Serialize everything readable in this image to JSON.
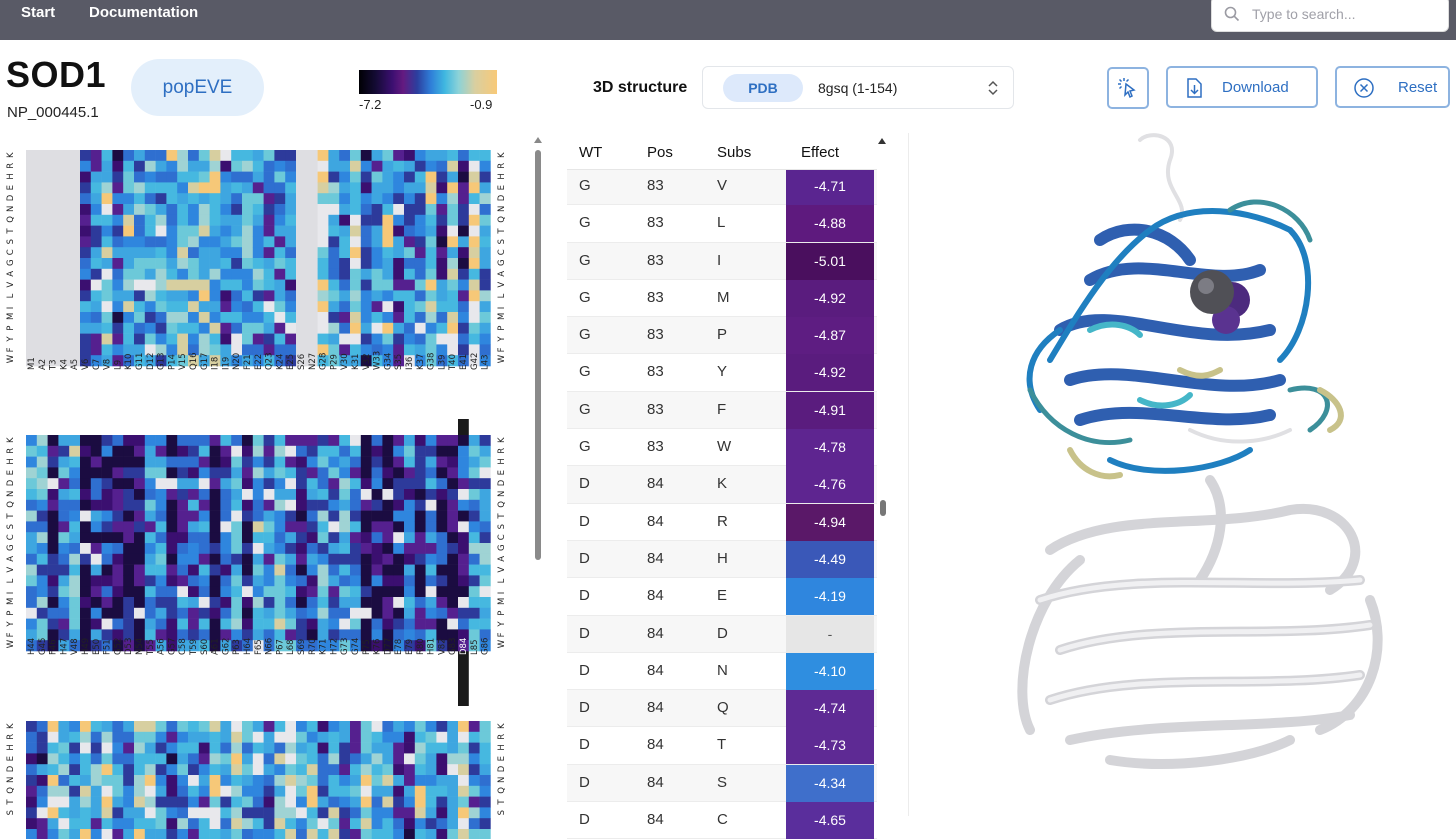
{
  "nav": {
    "start": "Start",
    "documentation": "Documentation",
    "search_placeholder": "Type to search..."
  },
  "header": {
    "gene": "SOD1",
    "protein_id": "NP_000445.1",
    "model": "popEVE",
    "colorbar_min": "-7.2",
    "colorbar_max": "-0.9",
    "structure_label": "3D structure",
    "structure_source": "PDB",
    "structure_value": "8gsq (1-154)",
    "download_label": "Download",
    "reset_label": "Reset"
  },
  "heatmap": {
    "amino_acids": [
      "K",
      "R",
      "H",
      "E",
      "D",
      "N",
      "Q",
      "T",
      "S",
      "C",
      "G",
      "A",
      "V",
      "L",
      "I",
      "M",
      "P",
      "Y",
      "F",
      "W"
    ],
    "blocks": [
      {
        "positions": [
          "M1",
          "A2",
          "T3",
          "K4",
          "A5",
          "V6",
          "C7",
          "V8",
          "L9",
          "K10",
          "G11",
          "D12",
          "G13",
          "P14",
          "V15",
          "Q16",
          "G17",
          "I18",
          "I19",
          "N20",
          "F21",
          "E22",
          "Q23",
          "K24",
          "E25",
          "S26",
          "N27",
          "G28",
          "P29",
          "V30",
          "K31",
          "V32",
          "W33",
          "G34",
          "S35",
          "I36",
          "K37",
          "G38",
          "L39",
          "T40",
          "E41",
          "G42",
          "L43"
        ]
      },
      {
        "positions": [
          "H44",
          "G45",
          "F46",
          "H47",
          "V48",
          "H49",
          "E50",
          "F51",
          "G52",
          "D53",
          "N54",
          "T55",
          "A56",
          "G57",
          "C58",
          "T59",
          "S60",
          "A61",
          "G62",
          "P63",
          "H64",
          "F65",
          "N66",
          "P67",
          "L68",
          "S69",
          "R70",
          "K71",
          "H72",
          "G73",
          "G74",
          "P75",
          "K76",
          "D77",
          "E78",
          "E79",
          "R80",
          "H81",
          "V82",
          "G83",
          "D84",
          "L85",
          "G86"
        ],
        "highlighted": "D84"
      },
      {
        "positions": []
      }
    ]
  },
  "table": {
    "headers": {
      "wt": "WT",
      "pos": "Pos",
      "subs": "Subs",
      "effect": "Effect"
    },
    "rows": [
      {
        "wt": "G",
        "pos": "83",
        "subs": "V",
        "effect": "-4.71",
        "color": "#5a2590"
      },
      {
        "wt": "G",
        "pos": "83",
        "subs": "L",
        "effect": "-4.88",
        "color": "#5e1a7e"
      },
      {
        "wt": "G",
        "pos": "83",
        "subs": "I",
        "effect": "-5.01",
        "color": "#4a0f5e"
      },
      {
        "wt": "G",
        "pos": "83",
        "subs": "M",
        "effect": "-4.92",
        "color": "#5a1c7e"
      },
      {
        "wt": "G",
        "pos": "83",
        "subs": "P",
        "effect": "-4.87",
        "color": "#5e1d82"
      },
      {
        "wt": "G",
        "pos": "83",
        "subs": "Y",
        "effect": "-4.92",
        "color": "#5a1c7e"
      },
      {
        "wt": "G",
        "pos": "83",
        "subs": "F",
        "effect": "-4.91",
        "color": "#5a1c7e"
      },
      {
        "wt": "G",
        "pos": "83",
        "subs": "W",
        "effect": "-4.78",
        "color": "#5e2590"
      },
      {
        "wt": "D",
        "pos": "84",
        "subs": "K",
        "effect": "-4.76",
        "color": "#5e2590"
      },
      {
        "wt": "D",
        "pos": "84",
        "subs": "R",
        "effect": "-4.94",
        "color": "#5a1868"
      },
      {
        "wt": "D",
        "pos": "84",
        "subs": "H",
        "effect": "-4.49",
        "color": "#3a58b8"
      },
      {
        "wt": "D",
        "pos": "84",
        "subs": "E",
        "effect": "-4.19",
        "color": "#2f86de"
      },
      {
        "wt": "D",
        "pos": "84",
        "subs": "D",
        "effect": "-",
        "color": "#e6e6e6"
      },
      {
        "wt": "D",
        "pos": "84",
        "subs": "N",
        "effect": "-4.10",
        "color": "#2f8ee0"
      },
      {
        "wt": "D",
        "pos": "84",
        "subs": "Q",
        "effect": "-4.74",
        "color": "#5e2a94"
      },
      {
        "wt": "D",
        "pos": "84",
        "subs": "T",
        "effect": "-4.73",
        "color": "#5e2a94"
      },
      {
        "wt": "D",
        "pos": "84",
        "subs": "S",
        "effect": "-4.34",
        "color": "#3f6fcb"
      },
      {
        "wt": "D",
        "pos": "84",
        "subs": "C",
        "effect": "-4.65",
        "color": "#5a2e9c"
      }
    ]
  }
}
